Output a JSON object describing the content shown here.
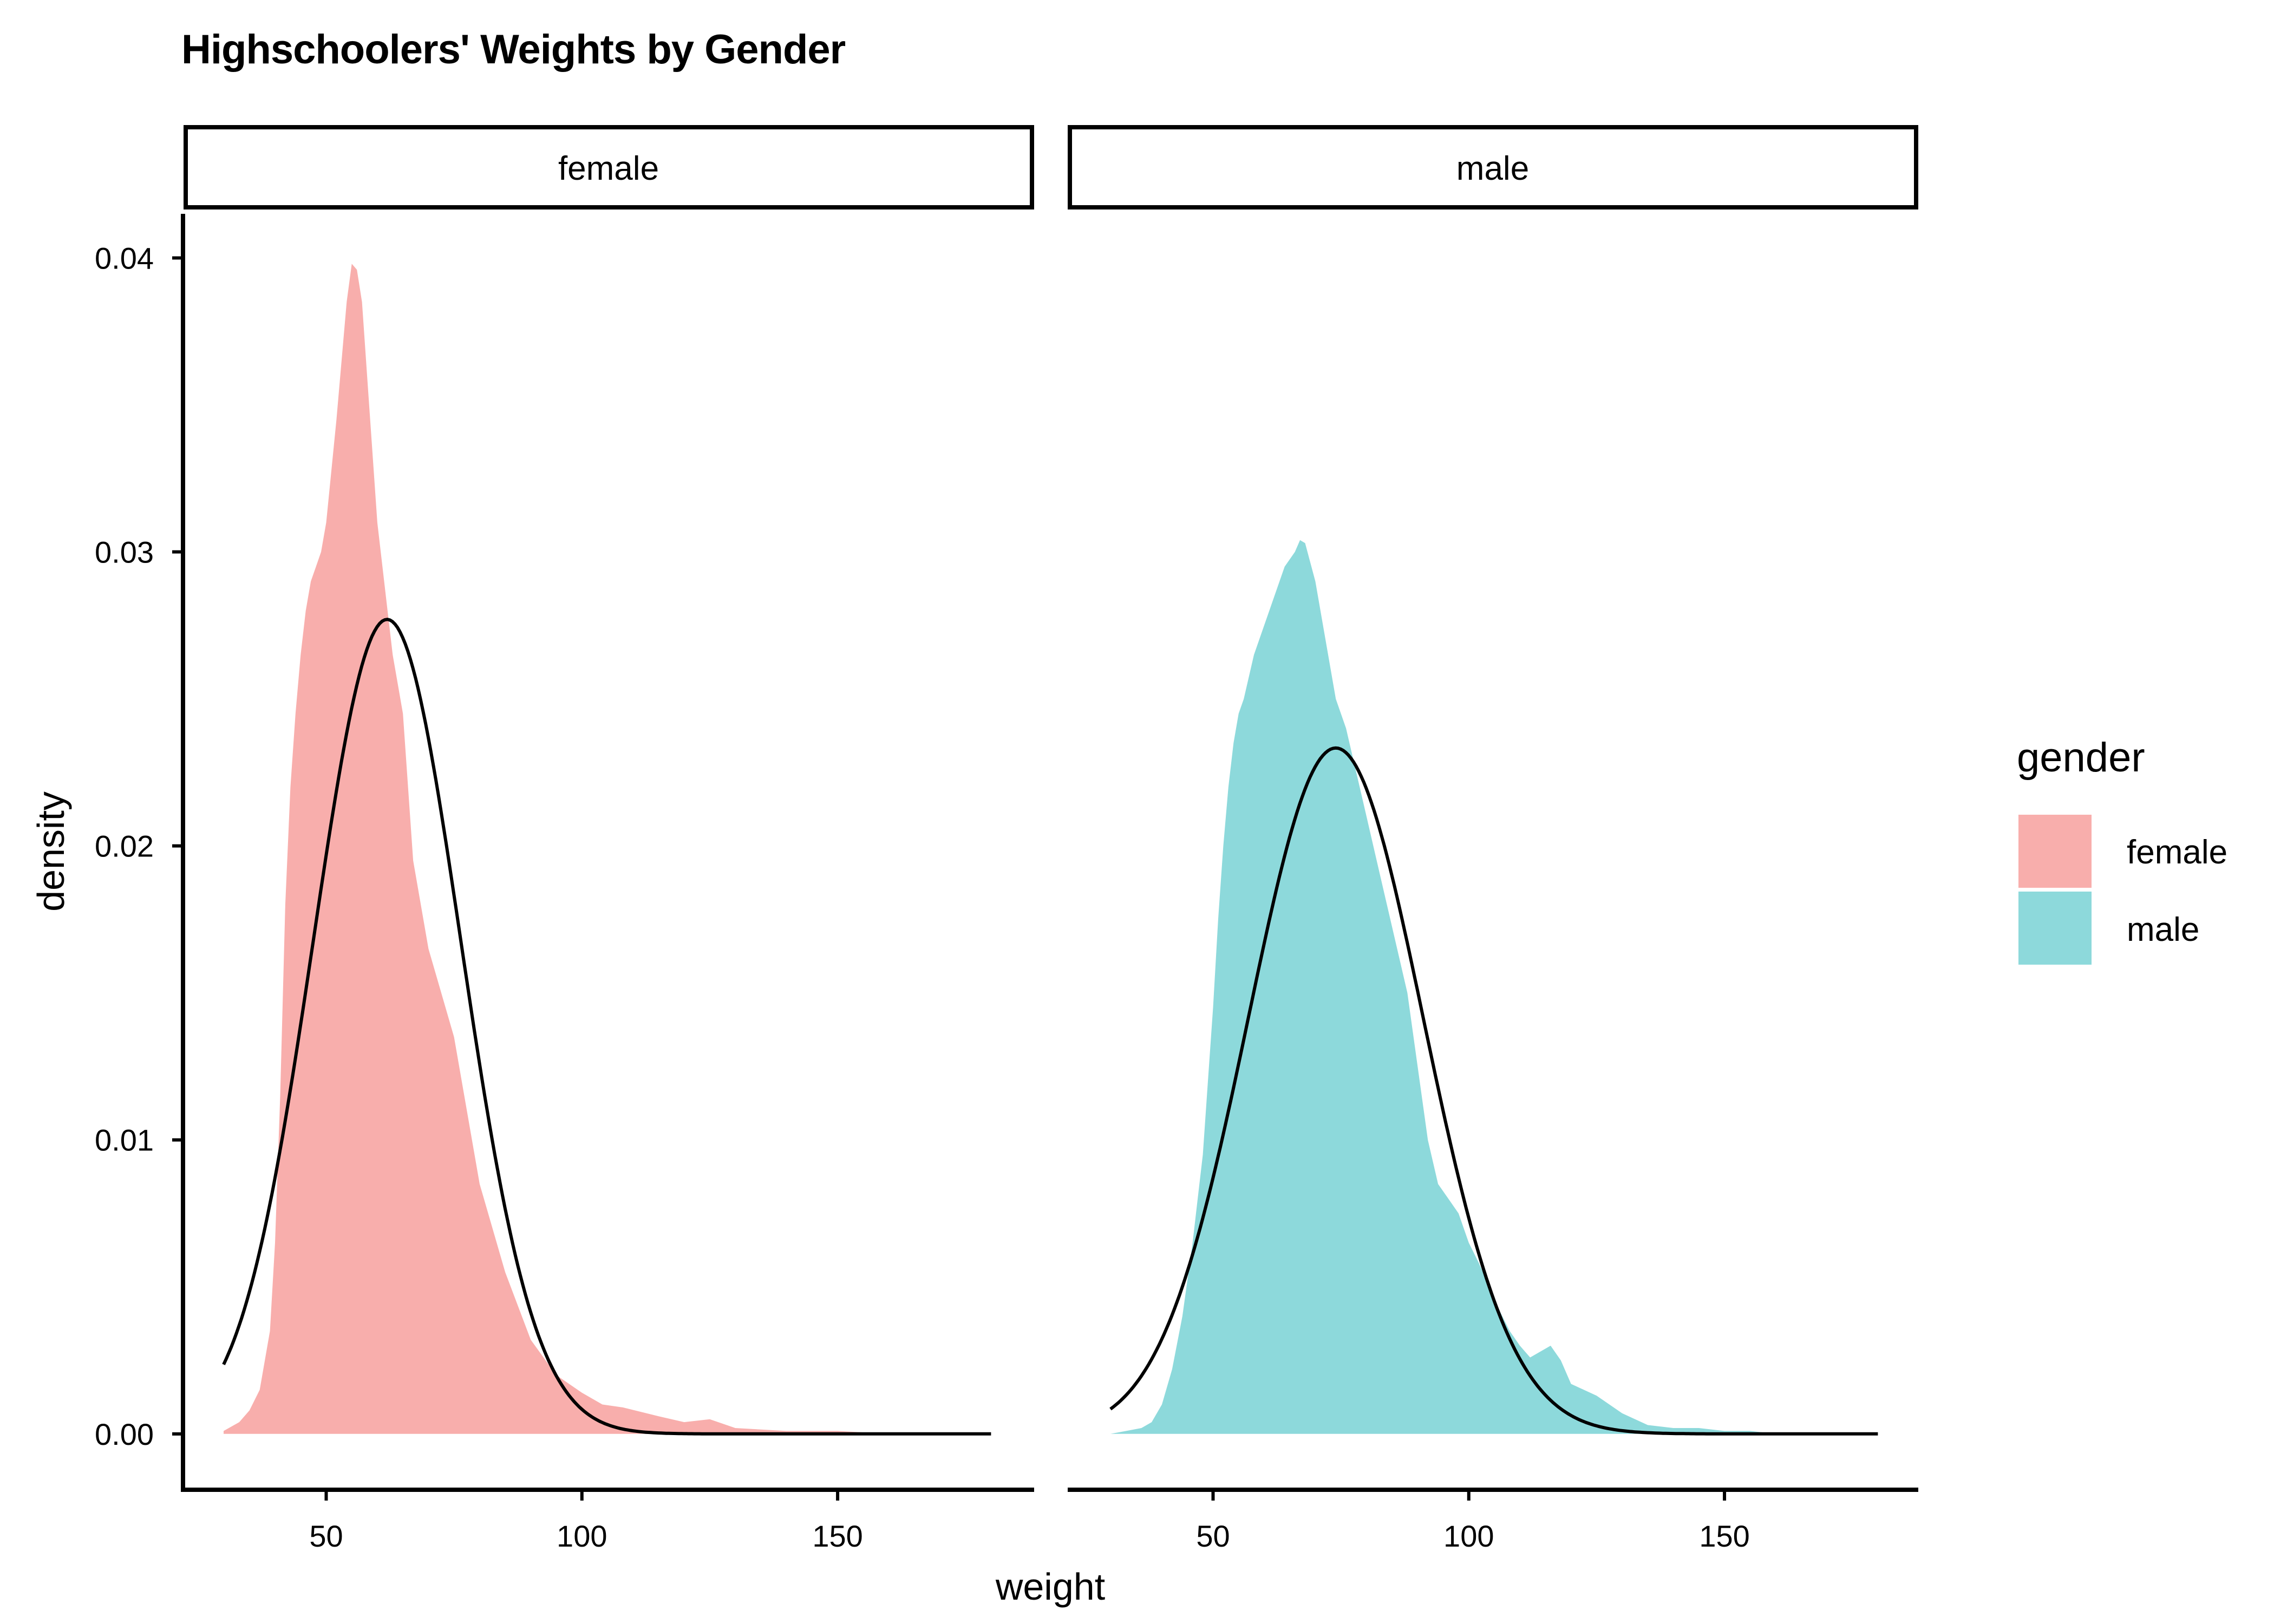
{
  "chart_data": {
    "type": "area",
    "title": "Highschoolers' Weights by Gender",
    "xlabel": "weight",
    "ylabel": "density",
    "xlim": [
      22,
      188
    ],
    "ylim": [
      -0.0019,
      0.0415
    ],
    "x_ticks": [
      50,
      100,
      150
    ],
    "y_ticks": [
      0.0,
      0.01,
      0.02,
      0.03,
      0.04
    ],
    "y_tick_labels": [
      "0.00",
      "0.01",
      "0.02",
      "0.03",
      "0.04"
    ],
    "x_tick_labels": [
      "50",
      "100",
      "150"
    ],
    "grid": false,
    "legend": {
      "title": "gender",
      "position": "right",
      "entries": [
        {
          "name": "female",
          "color": "#F8AEAC"
        },
        {
          "name": "male",
          "color": "#8DD9DB"
        }
      ]
    },
    "panels": [
      {
        "facet": "female",
        "fill": "#F8AEAC",
        "density": {
          "x": [
            29.94,
            33,
            35,
            37,
            39,
            40,
            41,
            42,
            43,
            44,
            45,
            46,
            47,
            48,
            49,
            50,
            52,
            54,
            55,
            56,
            57,
            58,
            60,
            62,
            63,
            65,
            67,
            70,
            75,
            80,
            85,
            90,
            95,
            100,
            104,
            108,
            115,
            120,
            125,
            130,
            140,
            150,
            160
          ],
          "y": [
            0.0001,
            0.0004,
            0.0008,
            0.0015,
            0.0035,
            0.0065,
            0.0115,
            0.018,
            0.022,
            0.0245,
            0.0265,
            0.028,
            0.029,
            0.0295,
            0.03,
            0.031,
            0.0345,
            0.0385,
            0.0398,
            0.0396,
            0.0385,
            0.036,
            0.031,
            0.028,
            0.0265,
            0.0245,
            0.0195,
            0.0165,
            0.0135,
            0.0085,
            0.0055,
            0.0032,
            0.002,
            0.0014,
            0.001,
            0.0009,
            0.0006,
            0.0004,
            0.0005,
            0.0002,
            0.0001,
            0.0001,
            0.0
          ]
        },
        "normal": {
          "mean": 61.9,
          "sd": 14.4,
          "x_range": [
            29.94,
            180
          ]
        }
      },
      {
        "facet": "male",
        "fill": "#8DD9DB",
        "density": {
          "x": [
            29.94,
            33,
            36,
            38,
            40,
            42,
            44,
            46,
            47,
            48,
            49,
            50,
            51,
            52,
            53,
            54,
            55,
            56,
            58,
            60,
            62,
            64,
            66,
            67,
            68,
            70,
            72,
            74,
            76,
            78,
            80,
            82,
            84,
            86,
            88,
            90,
            92,
            94,
            96,
            98,
            100,
            102,
            104,
            106,
            108,
            110,
            112,
            114,
            116,
            118,
            120,
            125,
            130,
            135,
            140,
            145,
            150,
            155,
            160,
            165
          ],
          "y": [
            0.0,
            0.0001,
            0.0002,
            0.0004,
            0.001,
            0.0022,
            0.004,
            0.0065,
            0.008,
            0.0095,
            0.012,
            0.0145,
            0.0175,
            0.02,
            0.022,
            0.0235,
            0.0245,
            0.025,
            0.0265,
            0.0275,
            0.0285,
            0.0295,
            0.03,
            0.0304,
            0.0303,
            0.029,
            0.027,
            0.025,
            0.024,
            0.0225,
            0.021,
            0.0195,
            0.018,
            0.0165,
            0.015,
            0.0125,
            0.01,
            0.0085,
            0.008,
            0.0075,
            0.0065,
            0.0058,
            0.005,
            0.0042,
            0.0035,
            0.003,
            0.0026,
            0.0028,
            0.003,
            0.0025,
            0.0017,
            0.0013,
            0.0007,
            0.0003,
            0.0002,
            0.0002,
            0.0001,
            0.0001,
            0.0,
            0.0
          ]
        },
        "normal": {
          "mean": 74.0,
          "sd": 17.1,
          "x_range": [
            29.94,
            180
          ]
        }
      }
    ]
  }
}
